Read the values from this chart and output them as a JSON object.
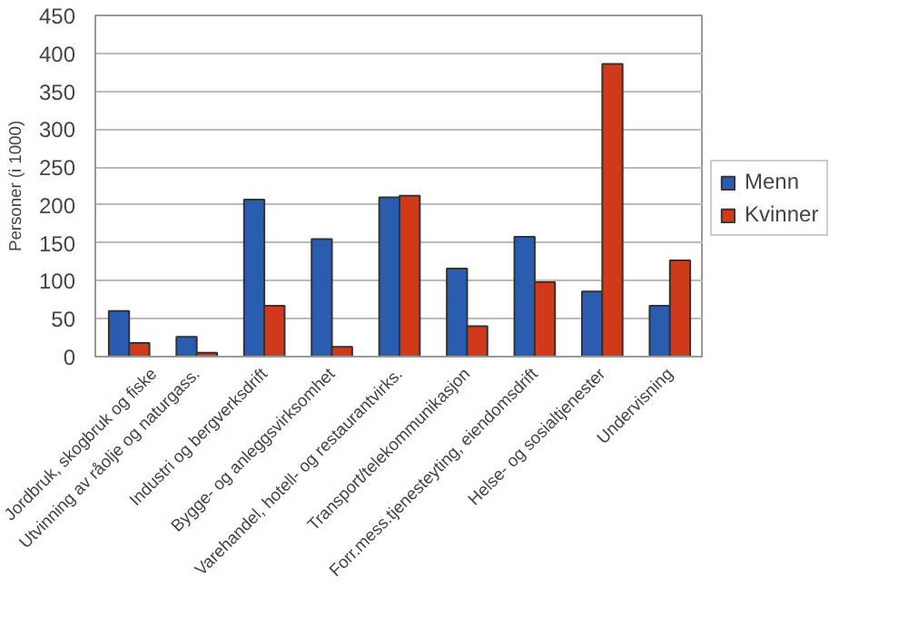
{
  "chart_data": {
    "type": "bar",
    "ylabel": "Personer (i 1000)",
    "categories": [
      "Jordbruk, skogbruk og fiske",
      "Utvinning av råolje og naturgass.",
      "Industri og bergverksdrift",
      "Bygge- og anleggsvirksomhet",
      "Varehandel, hotell- og restaurantvirks.",
      "Transport/telekommunikasjon",
      "Forr.mess.tjenesteyting, eiendomsdrift",
      "Helse- og sosialtjenester",
      "Undervisning"
    ],
    "series": [
      {
        "name": "Menn",
        "color": "#2a5cb0",
        "values": [
          60,
          26,
          207,
          155,
          210,
          116,
          158,
          86,
          67
        ]
      },
      {
        "name": "Kvinner",
        "color": "#d03a1a",
        "values": [
          18,
          5,
          67,
          13,
          212,
          40,
          98,
          386,
          127
        ]
      }
    ],
    "ylim": [
      0,
      450
    ],
    "yticks": [
      0,
      50,
      100,
      150,
      200,
      250,
      300,
      350,
      400,
      450
    ],
    "grid": "y",
    "legend": "right"
  }
}
